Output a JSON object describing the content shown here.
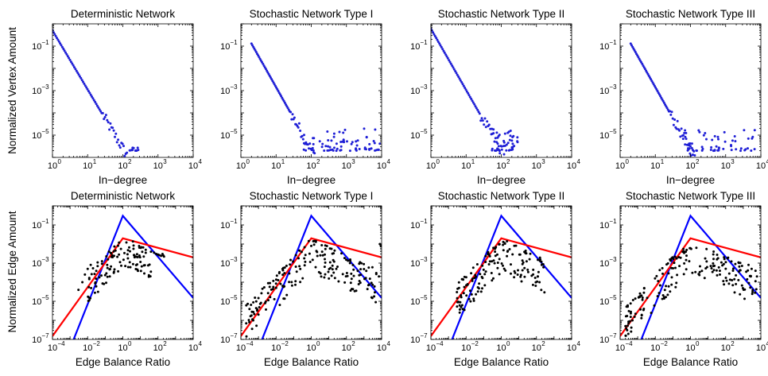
{
  "figure": {
    "row_ylabels": [
      "Normalized Vertex Amount",
      "Normalized Edge Amount"
    ]
  },
  "colors": {
    "dots_top": "#1f1fd6",
    "dots_bottom": "#000000",
    "line_blue": "#0000ff",
    "line_red": "#ff0000"
  },
  "chart_data": [
    {
      "type": "scatter",
      "title": "Deterministic Network",
      "xlabel": "In−degree",
      "ylabel": "Normalized Vertex Amount",
      "xscale": "log",
      "yscale": "log",
      "xlim": [
        1,
        10000
      ],
      "ylim": [
        1e-06,
        1
      ],
      "xticks": [
        {
          "v": 1,
          "m": "0"
        },
        {
          "v": 10,
          "m": "1"
        },
        {
          "v": 100,
          "m": "2"
        },
        {
          "v": 1000,
          "m": "3"
        },
        {
          "v": 10000,
          "m": "4"
        }
      ],
      "yticks": [
        {
          "v": 0.1,
          "m": "−1"
        },
        {
          "v": 0.001,
          "m": "−3"
        },
        {
          "v": 1e-05,
          "m": "−5"
        }
      ],
      "series": [
        {
          "kind": "points",
          "color": "#1f1fd6",
          "power_law": {
            "x_start": 1,
            "x_end": 140,
            "y_at_1": 0.5,
            "exponent": -2.65
          },
          "tail": {
            "x_start": 140,
            "x_end": 280,
            "y_low": 2e-06,
            "y_high": 3e-06,
            "count": 12
          }
        }
      ]
    },
    {
      "type": "scatter",
      "title": "Stochastic Network Type I",
      "xlabel": "In−degree",
      "xscale": "log",
      "yscale": "log",
      "xlim": [
        1,
        10000
      ],
      "ylim": [
        1e-06,
        1
      ],
      "xticks": [
        {
          "v": 1,
          "m": "0"
        },
        {
          "v": 10,
          "m": "1"
        },
        {
          "v": 100,
          "m": "2"
        },
        {
          "v": 1000,
          "m": "3"
        },
        {
          "v": 10000,
          "m": "4"
        }
      ],
      "yticks": [
        {
          "v": 0.1,
          "m": "−1"
        },
        {
          "v": 0.001,
          "m": "−3"
        },
        {
          "v": 1e-05,
          "m": "−5"
        }
      ],
      "series": [
        {
          "kind": "points",
          "color": "#1f1fd6",
          "power_law": {
            "x_start": 2,
            "x_end": 150,
            "y_at_1": 0.9,
            "exponent": -2.8
          },
          "tail": {
            "x_start": 60,
            "x_end": 9000,
            "y_low": 2e-06,
            "y_high": 2e-05,
            "count": 70
          }
        }
      ]
    },
    {
      "type": "scatter",
      "title": "Stochastic Network Type II",
      "xlabel": "In−degree",
      "xscale": "log",
      "yscale": "log",
      "xlim": [
        1,
        10000
      ],
      "ylim": [
        1e-06,
        1
      ],
      "xticks": [
        {
          "v": 1,
          "m": "0"
        },
        {
          "v": 10,
          "m": "1"
        },
        {
          "v": 100,
          "m": "2"
        },
        {
          "v": 1000,
          "m": "3"
        },
        {
          "v": 10000,
          "m": "4"
        }
      ],
      "yticks": [
        {
          "v": 0.1,
          "m": "−1"
        },
        {
          "v": 0.001,
          "m": "−3"
        },
        {
          "v": 1e-05,
          "m": "−5"
        }
      ],
      "series": [
        {
          "kind": "points",
          "color": "#1f1fd6",
          "power_law": {
            "x_start": 1,
            "x_end": 120,
            "y_at_1": 0.6,
            "exponent": -2.75
          },
          "tail": {
            "x_start": 50,
            "x_end": 300,
            "y_low": 2e-06,
            "y_high": 2e-05,
            "count": 45
          }
        }
      ]
    },
    {
      "type": "scatter",
      "title": "Stochastic Network Type III",
      "xlabel": "In−degree",
      "xscale": "log",
      "yscale": "log",
      "xlim": [
        1,
        10000
      ],
      "ylim": [
        1e-06,
        1
      ],
      "xticks": [
        {
          "v": 1,
          "m": "0"
        },
        {
          "v": 10,
          "m": "1"
        },
        {
          "v": 100,
          "m": "2"
        },
        {
          "v": 1000,
          "m": "3"
        },
        {
          "v": 10000,
          "m": "4"
        }
      ],
      "yticks": [
        {
          "v": 0.1,
          "m": "−1"
        },
        {
          "v": 0.001,
          "m": "−3"
        },
        {
          "v": 1e-05,
          "m": "−5"
        }
      ],
      "series": [
        {
          "kind": "points",
          "color": "#1f1fd6",
          "power_law": {
            "x_start": 2,
            "x_end": 150,
            "y_at_1": 0.9,
            "exponent": -2.8
          },
          "tail": {
            "x_start": 60,
            "x_end": 8000,
            "y_low": 2e-06,
            "y_high": 2e-05,
            "count": 60
          }
        }
      ]
    },
    {
      "type": "scatter",
      "title": "Deterministic Network",
      "xlabel": "Edge Balance Ratio",
      "ylabel": "Normalized Edge Amount",
      "xscale": "log",
      "yscale": "log",
      "xlim": [
        0.0001,
        10000
      ],
      "ylim": [
        1e-07,
        1
      ],
      "xticks": [
        {
          "v": 0.0001,
          "m": "−4"
        },
        {
          "v": 0.01,
          "m": "−2"
        },
        {
          "v": 1,
          "m": "0"
        },
        {
          "v": 100,
          "m": "2"
        },
        {
          "v": 10000,
          "m": "4"
        }
      ],
      "yticks": [
        {
          "v": 1e-07,
          "m": "−7"
        },
        {
          "v": 1e-05,
          "m": "−5"
        },
        {
          "v": 0.001,
          "m": "−3"
        },
        {
          "v": 0.1,
          "m": "−1"
        }
      ],
      "series": [
        {
          "kind": "line",
          "color": "#0000ff",
          "points": [
            [
              0.0016,
              1e-07
            ],
            [
              1,
              0.3
            ],
            [
              10000,
              1.5e-05
            ]
          ]
        },
        {
          "kind": "line",
          "color": "#ff0000",
          "points": [
            [
              0.0001,
              1.5e-07
            ],
            [
              1,
              0.02
            ],
            [
              10000,
              0.002
            ]
          ]
        },
        {
          "kind": "points",
          "color": "#000000",
          "cloud": {
            "x_min": 0.01,
            "x_max": 40,
            "upper_at_1": 0.025,
            "spread": 1.6,
            "count": 110
          },
          "extra": [
            [
              0.003,
              4e-05
            ],
            [
              0.005,
              0.0001
            ],
            [
              0.007,
              0.00025
            ],
            [
              0.01,
              0.0005
            ],
            [
              0.015,
              0.0008
            ],
            [
              20,
              0.005
            ],
            [
              40,
              0.004
            ],
            [
              60,
              0.0035
            ],
            [
              80,
              0.003
            ],
            [
              100,
              0.0028
            ],
            [
              120,
              0.0026
            ],
            [
              150,
              0.0024
            ],
            [
              180,
              0.003
            ],
            [
              200,
              0.0025
            ],
            [
              220,
              0.0022
            ]
          ]
        }
      ]
    },
    {
      "type": "scatter",
      "title": "Stochastic Network Type I",
      "xlabel": "Edge Balance Ratio",
      "xscale": "log",
      "yscale": "log",
      "xlim": [
        0.0001,
        10000
      ],
      "ylim": [
        1e-07,
        1
      ],
      "xticks": [
        {
          "v": 0.0001,
          "m": "−4"
        },
        {
          "v": 0.01,
          "m": "−2"
        },
        {
          "v": 1,
          "m": "0"
        },
        {
          "v": 100,
          "m": "2"
        },
        {
          "v": 10000,
          "m": "4"
        }
      ],
      "yticks": [
        {
          "v": 1e-07,
          "m": "−7"
        },
        {
          "v": 1e-05,
          "m": "−5"
        },
        {
          "v": 0.001,
          "m": "−3"
        },
        {
          "v": 0.1,
          "m": "−1"
        }
      ],
      "series": [
        {
          "kind": "line",
          "color": "#0000ff",
          "points": [
            [
              0.0016,
              1e-07
            ],
            [
              1,
              0.3
            ],
            [
              10000,
              1.5e-05
            ]
          ]
        },
        {
          "kind": "line",
          "color": "#ff0000",
          "points": [
            [
              0.0001,
              1.5e-07
            ],
            [
              1,
              0.02
            ],
            [
              10000,
              0.002
            ]
          ]
        },
        {
          "kind": "points",
          "color": "#000000",
          "cloud": {
            "x_min": 0.0002,
            "x_max": 8000,
            "upper_at_1": 0.02,
            "spread": 1.8,
            "count": 190
          },
          "extra": [
            [
              0.0002,
              7e-07
            ],
            [
              0.0003,
              8e-07
            ],
            [
              0.0005,
              1e-06
            ],
            [
              0.001,
              2e-06
            ],
            [
              3000,
              0.0006
            ],
            [
              5000,
              0.0003
            ],
            [
              7000,
              0.0002
            ],
            [
              8000,
              0.01
            ],
            [
              9000,
              0.008
            ]
          ]
        }
      ]
    },
    {
      "type": "scatter",
      "title": "Stochastic Network Type II",
      "xlabel": "Edge Balance Ratio",
      "xscale": "log",
      "yscale": "log",
      "xlim": [
        0.0001,
        10000
      ],
      "ylim": [
        1e-07,
        1
      ],
      "xticks": [
        {
          "v": 0.0001,
          "m": "−4"
        },
        {
          "v": 0.01,
          "m": "−2"
        },
        {
          "v": 1,
          "m": "0"
        },
        {
          "v": 100,
          "m": "2"
        },
        {
          "v": 10000,
          "m": "4"
        }
      ],
      "yticks": [
        {
          "v": 1e-07,
          "m": "−7"
        },
        {
          "v": 1e-05,
          "m": "−5"
        },
        {
          "v": 0.001,
          "m": "−3"
        },
        {
          "v": 0.1,
          "m": "−1"
        }
      ],
      "series": [
        {
          "kind": "line",
          "color": "#0000ff",
          "points": [
            [
              0.0016,
              1e-07
            ],
            [
              1,
              0.3
            ],
            [
              10000,
              1.5e-05
            ]
          ]
        },
        {
          "kind": "line",
          "color": "#ff0000",
          "points": [
            [
              0.0001,
              1.5e-07
            ],
            [
              1,
              0.02
            ],
            [
              10000,
              0.002
            ]
          ]
        },
        {
          "kind": "points",
          "color": "#000000",
          "cloud": {
            "x_min": 0.003,
            "x_max": 300,
            "upper_at_1": 0.02,
            "spread": 1.8,
            "count": 150
          },
          "extra": [
            [
              0.003,
              3e-05
            ],
            [
              0.004,
              5e-05
            ],
            [
              120,
              0.0002
            ],
            [
              150,
              0.0001
            ],
            [
              200,
              0.0008
            ],
            [
              250,
              0.0006
            ]
          ]
        }
      ]
    },
    {
      "type": "scatter",
      "title": "Stochastic Network Type III",
      "xlabel": "Edge Balance Ratio",
      "xscale": "log",
      "yscale": "log",
      "xlim": [
        0.0001,
        10000
      ],
      "ylim": [
        1e-07,
        1
      ],
      "xticks": [
        {
          "v": 0.0001,
          "m": "−4"
        },
        {
          "v": 0.01,
          "m": "−2"
        },
        {
          "v": 1,
          "m": "0"
        },
        {
          "v": 100,
          "m": "2"
        },
        {
          "v": 10000,
          "m": "4"
        }
      ],
      "yticks": [
        {
          "v": 1e-07,
          "m": "−7"
        },
        {
          "v": 1e-05,
          "m": "−5"
        },
        {
          "v": 0.001,
          "m": "−3"
        },
        {
          "v": 0.1,
          "m": "−1"
        }
      ],
      "series": [
        {
          "kind": "line",
          "color": "#0000ff",
          "points": [
            [
              0.0016,
              1e-07
            ],
            [
              1,
              0.3
            ],
            [
              10000,
              1.5e-05
            ]
          ]
        },
        {
          "kind": "line",
          "color": "#ff0000",
          "points": [
            [
              0.0001,
              1.5e-07
            ],
            [
              1,
              0.02
            ],
            [
              10000,
              0.002
            ]
          ]
        },
        {
          "kind": "points",
          "color": "#000000",
          "cloud": {
            "x_min": 0.0002,
            "x_max": 6000,
            "upper_at_1": 0.02,
            "spread": 1.8,
            "count": 190
          },
          "extra": [
            [
              0.0002,
              5e-07
            ],
            [
              0.0003,
              7e-07
            ],
            [
              0.0005,
              1e-06
            ],
            [
              2000,
              0.0008
            ],
            [
              3000,
              0.0005
            ],
            [
              5000,
              0.0004
            ],
            [
              6000,
              0.0002
            ]
          ]
        }
      ]
    }
  ]
}
